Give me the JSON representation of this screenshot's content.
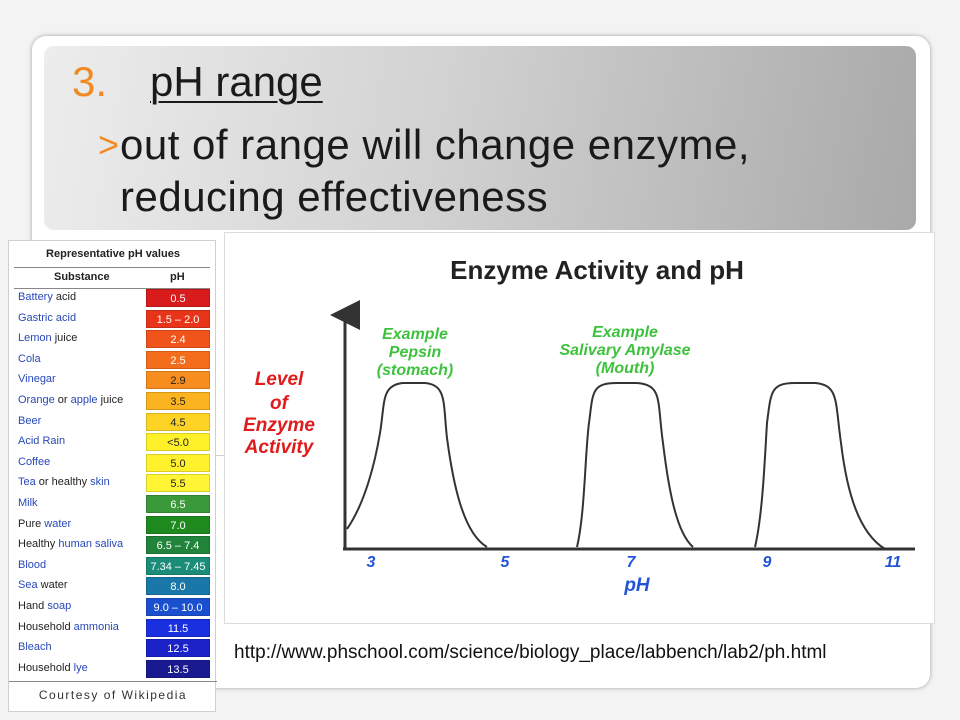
{
  "slide": {
    "title_number": "3.",
    "title": "pH range",
    "bullet_marker": ">",
    "bullet_text": "out of range will change enzyme, reducing effectiveness",
    "source_url": "http://www.phschool.com/science/biology_place/labbench/lab2/ph.html"
  },
  "ph_table": {
    "caption": "Representative pH values",
    "col_substance": "Substance",
    "col_ph": "pH",
    "credit": "Courtesy of Wikipedia",
    "rows": [
      {
        "parts": [
          {
            "t": "Battery",
            "link": true
          },
          {
            "t": " acid",
            "link": false
          }
        ],
        "value": "0.5",
        "color": "#d81b1b",
        "text_color": "#ffffff"
      },
      {
        "parts": [
          {
            "t": "Gastric acid",
            "link": true
          }
        ],
        "value": "1.5 – 2.0",
        "color": "#e8351a",
        "text_color": "#ffffff"
      },
      {
        "parts": [
          {
            "t": "Lemon",
            "link": true
          },
          {
            "t": " juice",
            "link": false
          }
        ],
        "value": "2.4",
        "color": "#f0541a",
        "text_color": "#ffffff"
      },
      {
        "parts": [
          {
            "t": "Cola",
            "link": true
          }
        ],
        "value": "2.5",
        "color": "#f46d1c",
        "text_color": "#ffffff"
      },
      {
        "parts": [
          {
            "t": "Vinegar",
            "link": true
          }
        ],
        "value": "2.9",
        "color": "#f78c1f",
        "text_color": "#222222"
      },
      {
        "parts": [
          {
            "t": "Orange",
            "link": true
          },
          {
            "t": " or ",
            "link": false
          },
          {
            "t": "apple",
            "link": true
          },
          {
            "t": " juice",
            "link": false
          }
        ],
        "value": "3.5",
        "color": "#fbb320",
        "text_color": "#222222"
      },
      {
        "parts": [
          {
            "t": "Beer",
            "link": true
          }
        ],
        "value": "4.5",
        "color": "#fdd326",
        "text_color": "#222222"
      },
      {
        "parts": [
          {
            "t": "Acid Rain",
            "link": true
          }
        ],
        "value": "<5.0",
        "color": "#fef12a",
        "text_color": "#222222"
      },
      {
        "parts": [
          {
            "t": "Coffee",
            "link": true
          }
        ],
        "value": "5.0",
        "color": "#fff22c",
        "text_color": "#222222"
      },
      {
        "parts": [
          {
            "t": "Tea",
            "link": true
          },
          {
            "t": " or healthy ",
            "link": false
          },
          {
            "t": "skin",
            "link": true
          }
        ],
        "value": "5.5",
        "color": "#fff535",
        "text_color": "#222222"
      },
      {
        "parts": [
          {
            "t": "Milk",
            "link": true
          }
        ],
        "value": "6.5",
        "color": "#3a9a3a",
        "text_color": "#ffffff"
      },
      {
        "parts": [
          {
            "t": "Pure ",
            "link": false
          },
          {
            "t": "water",
            "link": true
          }
        ],
        "value": "7.0",
        "color": "#1e8a1e",
        "text_color": "#ffffff"
      },
      {
        "parts": [
          {
            "t": "Healthy ",
            "link": false
          },
          {
            "t": "human saliva",
            "link": true
          }
        ],
        "value": "6.5 – 7.4",
        "color": "#21843a",
        "text_color": "#ffffff"
      },
      {
        "parts": [
          {
            "t": "Blood",
            "link": true
          }
        ],
        "value": "7.34 – 7.45",
        "color": "#1a8c78",
        "text_color": "#ffffff"
      },
      {
        "parts": [
          {
            "t": "Sea",
            "link": true
          },
          {
            "t": " water",
            "link": false
          }
        ],
        "value": "8.0",
        "color": "#1a78a8",
        "text_color": "#ffffff"
      },
      {
        "parts": [
          {
            "t": "Hand ",
            "link": false
          },
          {
            "t": "soap",
            "link": true
          }
        ],
        "value": "9.0 – 10.0",
        "color": "#1a4fcf",
        "text_color": "#ffffff"
      },
      {
        "parts": [
          {
            "t": "Household ",
            "link": false
          },
          {
            "t": "ammonia",
            "link": true
          }
        ],
        "value": "11.5",
        "color": "#1a30e0",
        "text_color": "#ffffff"
      },
      {
        "parts": [
          {
            "t": "Bleach",
            "link": true
          }
        ],
        "value": "12.5",
        "color": "#1a22c8",
        "text_color": "#ffffff"
      },
      {
        "parts": [
          {
            "t": "Household ",
            "link": false
          },
          {
            "t": "lye",
            "link": true
          }
        ],
        "value": "13.5",
        "color": "#1a1a90",
        "text_color": "#ffffff"
      }
    ]
  },
  "graph": {
    "title": "Enzyme Activity and pH",
    "ylabel_lines": [
      "Level",
      "of",
      "Enzyme",
      "Activity"
    ],
    "xlabel": "pH",
    "ticks": [
      "3",
      "5",
      "7",
      "9",
      "11"
    ],
    "curves": [
      {
        "label_lines": [
          "Example",
          "Pepsin",
          "(stomach)"
        ]
      },
      {
        "label_lines": [
          "Example",
          "Salivary Amylase",
          "(Mouth)"
        ]
      },
      {
        "label_lines": []
      }
    ],
    "colors": {
      "title": "#222222",
      "ylabel": "#e01b1b",
      "label": "#3ec23e",
      "axis_text": "#2155d6",
      "line": "#333333"
    }
  }
}
